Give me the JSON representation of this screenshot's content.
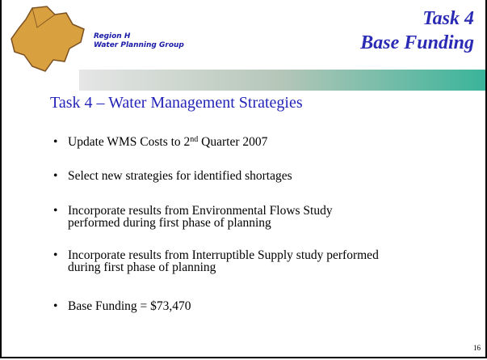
{
  "header": {
    "org_line1": "Region H",
    "org_line2": "Water Planning Group",
    "title_line1": "Task 4",
    "title_line2": "Base Funding"
  },
  "heading": "Task 4 – Water Management Strategies",
  "bullets": [
    {
      "before": "Update WMS Costs to 2",
      "sup": "nd",
      "after": " Quarter 2007"
    },
    {
      "lines": [
        "Select new strategies for identified shortages"
      ]
    },
    {
      "lines": [
        "Incorporate results from Environmental Flows Study",
        "performed during first phase of planning"
      ]
    },
    {
      "lines": [
        "Incorporate results from Interruptible Supply study performed",
        "during first phase of planning"
      ]
    },
    {
      "lines": [
        "Base Funding = $73,470"
      ]
    }
  ],
  "page_number": "16"
}
